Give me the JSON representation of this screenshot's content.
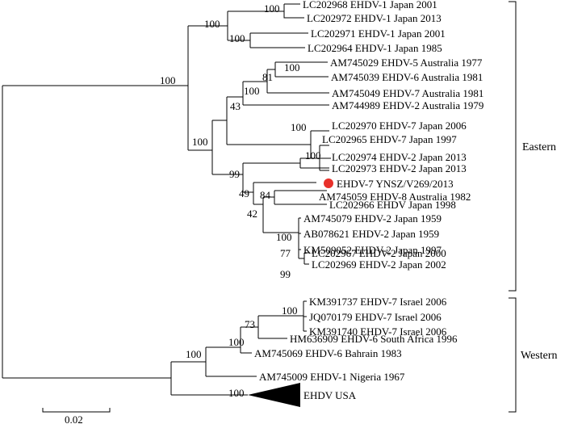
{
  "taxa": [
    {
      "id": "t1",
      "label": "LC202968 EHDV-1 Japan 2001"
    },
    {
      "id": "t2",
      "label": "LC202972 EHDV-1 Japan 2013"
    },
    {
      "id": "t3",
      "label": "LC202971 EHDV-1 Japan 2001"
    },
    {
      "id": "t4",
      "label": "LC202964 EHDV-1 Japan 1985"
    },
    {
      "id": "t5",
      "label": "AM745029 EHDV-5 Australia 1977"
    },
    {
      "id": "t6",
      "label": "AM745039 EHDV-6 Australia 1981"
    },
    {
      "id": "t7",
      "label": "AM745049 EHDV-7 Australia 1981"
    },
    {
      "id": "t8",
      "label": "AM744989 EHDV-2 Australia 1979"
    },
    {
      "id": "t9",
      "label": "LC202970 EHDV-7 Japan 2006"
    },
    {
      "id": "t10",
      "label": "LC202965 EHDV-7 Japan 1997"
    },
    {
      "id": "t11",
      "label": "LC202974 EHDV-2 Japan 2013"
    },
    {
      "id": "t12",
      "label": "LC202973 EHDV-2 Japan 2013"
    },
    {
      "id": "t13",
      "label": "EHDV-7 YNSZ/V269/2013"
    },
    {
      "id": "t14",
      "label": "AM745059 EHDV-8 Australia 1982"
    },
    {
      "id": "t15",
      "label": "LC202966 EHDV Japan 1998"
    },
    {
      "id": "t16",
      "label": "AM745079 EHDV-2 Japan 1959"
    },
    {
      "id": "t17",
      "label": "AB078621 EHDV-2 Japan 1959"
    },
    {
      "id": "t18",
      "label": "KM509052 EHDV-2 Japan 1997"
    },
    {
      "id": "t19",
      "label": "LC202967 EHDV-2 Japan 2000"
    },
    {
      "id": "t20",
      "label": "LC202969 EHDV-2 Japan 2002"
    },
    {
      "id": "t21",
      "label": "KM391737 EHDV-7 Israel 2006"
    },
    {
      "id": "t22",
      "label": "JQ070179 EHDV-7 Israel 2006"
    },
    {
      "id": "t23",
      "label": "KM391740 EHDV-7 Israel 2006"
    },
    {
      "id": "t24",
      "label": "HM636909 EHDV-6 South Africa 1996"
    },
    {
      "id": "t25",
      "label": "AM745069 EHDV-6 Bahrain 1983"
    },
    {
      "id": "t26",
      "label": "AM745009 EHDV-1 Nigeria 1967"
    },
    {
      "id": "t27",
      "label": "EHDV USA"
    }
  ],
  "bootstrap": {
    "n_jp1": "100",
    "n_jp1a": "100",
    "n_jp1b": "100",
    "n_main": "100",
    "n_aus": "43",
    "n_aus2": "81",
    "n_aus3": "100",
    "n_aus4": "100",
    "n_e": "100",
    "n_jp7": "100",
    "n_big": "99",
    "n_jp2": "100",
    "n_49": "49",
    "n_84": "84",
    "n_42": "42",
    "n_100b": "100",
    "n_77": "77",
    "n_99b": "99",
    "n_isr": "100",
    "n_73": "73",
    "n_w1": "100",
    "n_w0": "100",
    "n_usa": "100"
  },
  "groups": {
    "eastern": "Eastern",
    "western": "Western"
  },
  "scale": {
    "label": "0.02"
  },
  "colors": {
    "highlight": "#e8302a",
    "line": "#000000"
  }
}
